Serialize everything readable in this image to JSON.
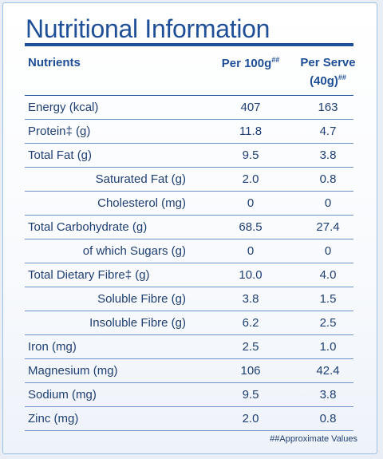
{
  "title": "Nutritional Information",
  "header": {
    "nutrients": "Nutrients",
    "per100": "Per 100g",
    "per100_sup": "##",
    "serve_line1": "Per Serve",
    "serve_line2": "(40g)",
    "serve_sup": "##"
  },
  "rows": [
    {
      "name": "Energy (kcal)",
      "v1": "407",
      "v2": "163",
      "sub": false
    },
    {
      "name": "Protein‡ (g)",
      "v1": "11.8",
      "v2": "4.7",
      "sub": false
    },
    {
      "name": "Total Fat (g)",
      "v1": "9.5",
      "v2": "3.8",
      "sub": false
    },
    {
      "name": "Saturated Fat (g)",
      "v1": "2.0",
      "v2": "0.8",
      "sub": true
    },
    {
      "name": "Cholesterol (mg)",
      "v1": "0",
      "v2": "0",
      "sub": true
    },
    {
      "name": "Total Carbohydrate (g)",
      "v1": "68.5",
      "v2": "27.4",
      "sub": false
    },
    {
      "name": "of which Sugars (g)",
      "v1": "0",
      "v2": "0",
      "sub": true
    },
    {
      "name": "Total Dietary Fibre‡ (g)",
      "v1": "10.0",
      "v2": "4.0",
      "sub": false
    },
    {
      "name": "Soluble Fibre (g)",
      "v1": "3.8",
      "v2": "1.5",
      "sub": true
    },
    {
      "name": "Insoluble Fibre (g)",
      "v1": "6.2",
      "v2": "2.5",
      "sub": true
    },
    {
      "name": "Iron (mg)",
      "v1": "2.5",
      "v2": "1.0",
      "sub": false
    },
    {
      "name": "Magnesium (mg)",
      "v1": "106",
      "v2": "42.4",
      "sub": false
    },
    {
      "name": "Sodium (mg)",
      "v1": "9.5",
      "v2": "3.8",
      "sub": false
    },
    {
      "name": "Zinc (mg)",
      "v1": "2.0",
      "v2": "0.8",
      "sub": false
    }
  ],
  "footnote": "##Approximate Values"
}
